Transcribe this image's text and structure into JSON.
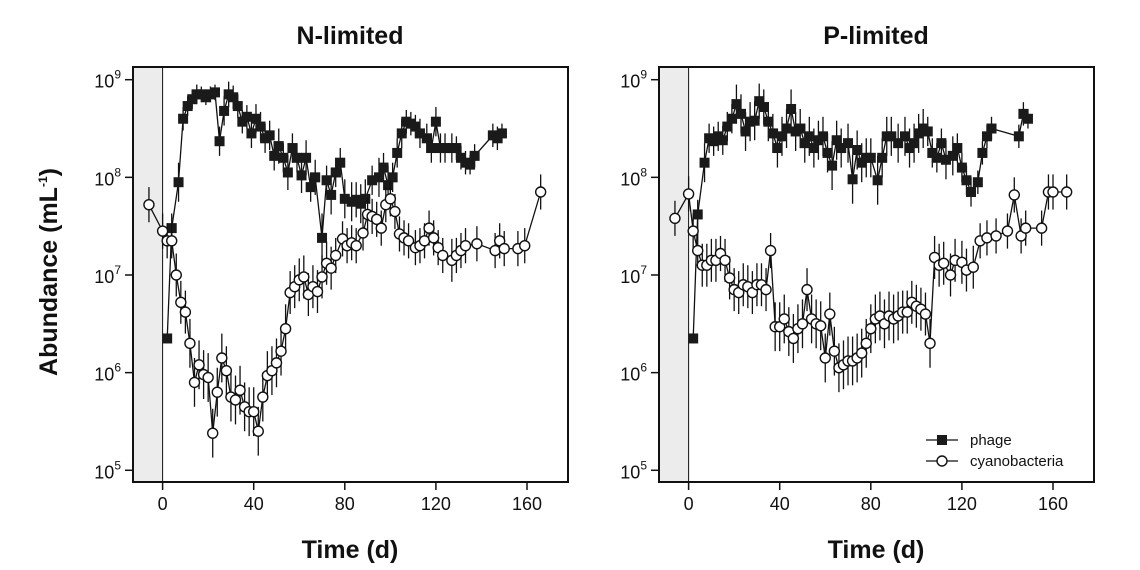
{
  "y_axis_label": "Abundance (mL",
  "y_axis_label_exp": "-1",
  "y_axis_label_close": ")",
  "legend": {
    "phage": "phage",
    "cyano": "cyanobacteria"
  },
  "colors": {
    "phage": "#1a1a1a",
    "cyano": "#ffffff",
    "shade": "#ececec",
    "line": "#111111"
  },
  "chart_data": [
    {
      "type": "scatter",
      "title": "N-limited",
      "xlabel": "Time (d)",
      "ylabel": "Abundance (mL-1)",
      "xlim": [
        -13,
        178
      ],
      "ylim_log10": [
        4.88,
        9.13
      ],
      "y_scale": "log",
      "xticks": [
        0,
        40,
        80,
        120,
        160
      ],
      "ytick_base": "10",
      "ytick_exponents": [
        "5",
        "6",
        "7",
        "8",
        "9"
      ],
      "shaded_x_range": [
        -13,
        0
      ],
      "series": [
        {
          "name": "phage",
          "x": [
            2,
            4,
            7,
            9,
            11,
            13,
            15,
            17,
            19,
            21,
            23,
            25,
            27,
            29,
            31,
            33,
            35,
            37,
            39,
            41,
            43,
            45,
            47,
            49,
            51,
            53,
            55,
            57,
            59,
            61,
            63,
            65,
            67,
            70,
            72,
            74,
            76,
            78,
            80,
            83,
            85,
            87,
            89,
            92,
            95,
            97,
            99,
            101,
            103,
            105,
            107,
            109,
            111,
            113,
            116,
            118,
            120,
            122,
            124,
            127,
            129,
            131,
            133,
            135,
            137,
            145,
            147,
            149
          ],
          "log10_y": [
            6.35,
            7.48,
            7.95,
            8.6,
            8.73,
            8.8,
            8.85,
            8.85,
            8.82,
            8.85,
            8.87,
            8.37,
            8.68,
            8.85,
            8.82,
            8.73,
            8.57,
            8.62,
            8.45,
            8.6,
            8.52,
            8.4,
            8.43,
            8.22,
            8.32,
            8.2,
            8.05,
            8.3,
            8.2,
            8.02,
            8.2,
            7.9,
            8.0,
            7.38,
            7.97,
            7.82,
            8.05,
            8.15,
            7.78,
            7.75,
            7.77,
            7.73,
            7.78,
            7.97,
            8.0,
            8.1,
            7.92,
            8.0,
            8.25,
            8.45,
            8.57,
            8.55,
            8.52,
            8.45,
            8.4,
            8.3,
            8.57,
            8.3,
            8.3,
            8.3,
            8.3,
            8.2,
            8.15,
            8.13,
            8.22,
            8.43,
            8.4,
            8.45
          ],
          "log10_err": [
            0.05,
            0.15,
            0.2,
            0.12,
            0.1,
            0.1,
            0.1,
            0.08,
            0.08,
            0.08,
            0.08,
            0.15,
            0.15,
            0.13,
            0.12,
            0.12,
            0.12,
            0.12,
            0.15,
            0.15,
            0.15,
            0.15,
            0.15,
            0.15,
            0.18,
            0.15,
            0.18,
            0.15,
            0.15,
            0.18,
            0.18,
            0.15,
            0.18,
            0.25,
            0.15,
            0.2,
            0.15,
            0.15,
            0.2,
            0.2,
            0.18,
            0.2,
            0.2,
            0.15,
            0.2,
            0.15,
            0.2,
            0.15,
            0.15,
            0.15,
            0.12,
            0.12,
            0.12,
            0.15,
            0.15,
            0.15,
            0.15,
            0.15,
            0.15,
            0.15,
            0.12,
            0.12,
            0.12,
            0.1,
            0.12,
            0.12,
            0.12,
            0.1
          ]
        },
        {
          "name": "cyanobacteria",
          "x": [
            -6,
            0,
            2,
            4,
            6,
            8,
            10,
            12,
            14,
            16,
            18,
            20,
            22,
            24,
            26,
            28,
            30,
            32,
            34,
            36,
            38,
            40,
            42,
            44,
            46,
            48,
            50,
            52,
            54,
            56,
            58,
            60,
            62,
            64,
            66,
            68,
            70,
            72,
            74,
            76,
            79,
            81,
            83,
            85,
            88,
            90,
            92,
            94,
            96,
            98,
            100,
            102,
            104,
            106,
            108,
            111,
            113,
            115,
            117,
            119,
            121,
            123,
            127,
            129,
            131,
            133,
            138,
            146,
            148,
            150,
            156,
            159,
            166
          ],
          "log10_y": [
            7.72,
            7.45,
            7.35,
            7.35,
            7.0,
            6.72,
            6.62,
            6.3,
            5.9,
            6.08,
            5.98,
            5.95,
            5.38,
            5.8,
            6.15,
            6.02,
            5.75,
            5.72,
            5.82,
            5.65,
            5.6,
            5.6,
            5.4,
            5.75,
            5.97,
            6.02,
            6.1,
            6.22,
            6.45,
            6.82,
            6.88,
            6.95,
            6.98,
            6.8,
            6.88,
            6.83,
            6.98,
            7.12,
            7.07,
            7.2,
            7.37,
            7.3,
            7.33,
            7.3,
            7.43,
            7.62,
            7.6,
            7.57,
            7.48,
            7.72,
            7.78,
            7.65,
            7.42,
            7.38,
            7.35,
            7.28,
            7.3,
            7.35,
            7.48,
            7.38,
            7.28,
            7.2,
            7.15,
            7.2,
            7.25,
            7.3,
            7.32,
            7.25,
            7.35,
            7.27,
            7.27,
            7.3,
            7.85
          ]
        }
      ]
    },
    {
      "type": "scatter",
      "title": "P-limited",
      "xlabel": "Time (d)",
      "ylabel": "Abundance (mL-1)",
      "xlim": [
        -13,
        178
      ],
      "ylim_log10": [
        4.88,
        9.13
      ],
      "y_scale": "log",
      "xticks": [
        0,
        40,
        80,
        120,
        160
      ],
      "ytick_base": "10",
      "ytick_exponents": [
        "5",
        "6",
        "7",
        "8",
        "9"
      ],
      "shaded_x_range": [
        -13,
        0
      ],
      "series": [
        {
          "name": "phage",
          "x": [
            2,
            4,
            7,
            9,
            11,
            13,
            15,
            17,
            19,
            21,
            23,
            25,
            27,
            29,
            31,
            33,
            35,
            37,
            39,
            41,
            43,
            45,
            47,
            49,
            51,
            53,
            55,
            57,
            59,
            61,
            63,
            65,
            67,
            70,
            72,
            74,
            76,
            78,
            80,
            83,
            85,
            87,
            89,
            92,
            95,
            97,
            99,
            101,
            103,
            105,
            107,
            109,
            111,
            113,
            116,
            118,
            120,
            122,
            124,
            127,
            129,
            131,
            133,
            145,
            147,
            149
          ],
          "log10_y": [
            6.35,
            7.62,
            8.15,
            8.4,
            8.37,
            8.42,
            8.38,
            8.52,
            8.6,
            8.75,
            8.65,
            8.47,
            8.57,
            8.58,
            8.78,
            8.72,
            8.57,
            8.45,
            8.3,
            8.42,
            8.5,
            8.7,
            8.47,
            8.5,
            8.35,
            8.42,
            8.3,
            8.38,
            8.42,
            8.25,
            8.12,
            8.38,
            8.3,
            8.35,
            7.98,
            8.28,
            8.15,
            8.2,
            8.2,
            7.97,
            8.2,
            8.42,
            8.42,
            8.35,
            8.42,
            8.3,
            8.35,
            8.45,
            8.5,
            8.47,
            8.25,
            8.2,
            8.35,
            8.18,
            8.22,
            8.3,
            8.1,
            7.97,
            7.85,
            7.95,
            8.25,
            8.42,
            8.5,
            8.42,
            8.65,
            8.6
          ],
          "log10_err": [
            0.05,
            0.15,
            0.2,
            0.15,
            0.15,
            0.15,
            0.15,
            0.15,
            0.15,
            0.2,
            0.2,
            0.2,
            0.2,
            0.2,
            0.18,
            0.18,
            0.2,
            0.2,
            0.2,
            0.2,
            0.2,
            0.2,
            0.2,
            0.2,
            0.2,
            0.2,
            0.2,
            0.2,
            0.2,
            0.2,
            0.25,
            0.2,
            0.2,
            0.2,
            0.25,
            0.2,
            0.2,
            0.2,
            0.2,
            0.25,
            0.2,
            0.2,
            0.2,
            0.2,
            0.2,
            0.2,
            0.2,
            0.2,
            0.2,
            0.15,
            0.15,
            0.15,
            0.15,
            0.2,
            0.2,
            0.15,
            0.15,
            0.15,
            0.15,
            0.12,
            0.12,
            0.12,
            0.12,
            0.12,
            0.12,
            0.1
          ]
        },
        {
          "name": "cyanobacteria",
          "x": [
            -6,
            0,
            2,
            4,
            6,
            8,
            10,
            12,
            14,
            16,
            18,
            20,
            22,
            24,
            26,
            28,
            30,
            32,
            34,
            36,
            38,
            40,
            42,
            44,
            46,
            48,
            50,
            52,
            54,
            56,
            58,
            60,
            62,
            64,
            66,
            68,
            70,
            72,
            74,
            76,
            78,
            80,
            82,
            84,
            86,
            88,
            90,
            92,
            94,
            96,
            98,
            100,
            102,
            104,
            106,
            108,
            110,
            112,
            115,
            117,
            120,
            122,
            125,
            128,
            131,
            135,
            140,
            143,
            146,
            148,
            155,
            158,
            160,
            166
          ],
          "log10_y": [
            7.58,
            7.83,
            7.45,
            7.25,
            7.1,
            7.1,
            7.15,
            7.15,
            7.22,
            7.15,
            6.97,
            6.85,
            6.82,
            6.9,
            6.88,
            6.82,
            6.9,
            6.9,
            6.85,
            7.25,
            6.47,
            6.47,
            6.55,
            6.42,
            6.35,
            6.45,
            6.5,
            6.85,
            6.55,
            6.5,
            6.48,
            6.15,
            6.6,
            6.22,
            6.05,
            6.08,
            6.12,
            6.12,
            6.15,
            6.2,
            6.3,
            6.45,
            6.55,
            6.58,
            6.5,
            6.58,
            6.55,
            6.58,
            6.62,
            6.62,
            6.72,
            6.68,
            6.65,
            6.6,
            6.3,
            7.18,
            7.1,
            7.12,
            7.0,
            7.15,
            7.13,
            7.05,
            7.08,
            7.35,
            7.38,
            7.4,
            7.45,
            7.82,
            7.4,
            7.48,
            7.48,
            7.85,
            7.85,
            7.85
          ]
        }
      ]
    }
  ]
}
